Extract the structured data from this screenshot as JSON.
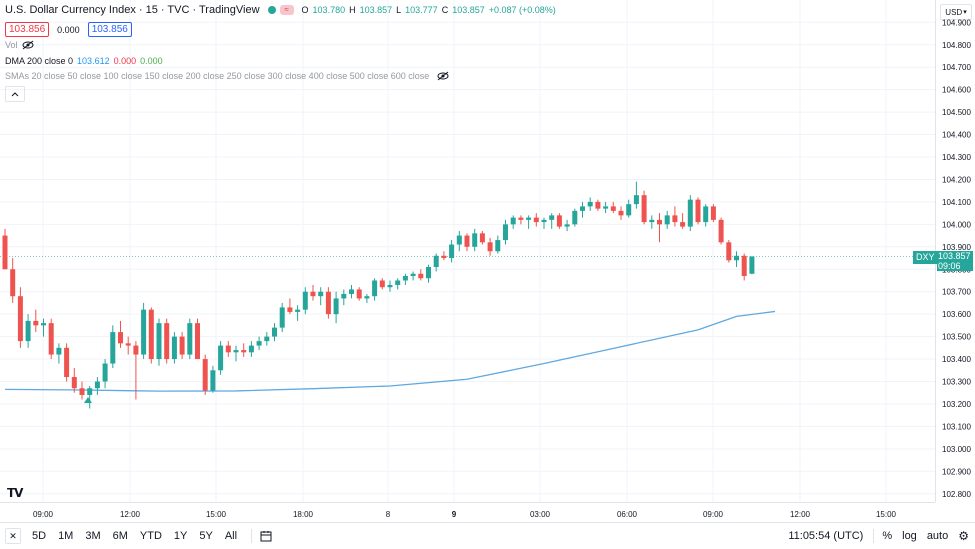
{
  "header": {
    "symbol_title": "U.S. Dollar Currency Index · 15 · TVC · TradingView",
    "ohlc": {
      "o_label": "O",
      "o": "103.780",
      "h_label": "H",
      "h": "103.857",
      "l_label": "L",
      "l": "103.777",
      "c_label": "C",
      "c": "103.857",
      "change": "+0.087 (+0.08%)"
    },
    "sell_price": "103.856",
    "spread": "0.000",
    "buy_price": "103.856"
  },
  "indicators": {
    "vol_label": "Vol",
    "dma_label": "DMA 200 close 0",
    "dma_values": [
      "103.612",
      "0.000",
      "0.000"
    ],
    "sma_label": "SMAs 20 close 50 close 100 close 150 close 200 close 250 close 300 close 400 close 500 close 600 close"
  },
  "currency": "USD",
  "price_axis": {
    "ticks": [
      "104.900",
      "104.800",
      "104.700",
      "104.600",
      "104.500",
      "104.400",
      "104.300",
      "104.200",
      "104.100",
      "104.000",
      "103.900",
      "103.800",
      "103.700",
      "103.600",
      "103.500",
      "103.400",
      "103.300",
      "103.200",
      "103.100",
      "103.000",
      "102.900",
      "102.800"
    ],
    "last_symbol": "DXY",
    "last_price": "103.857",
    "countdown": "09:06"
  },
  "time_axis": {
    "labels": [
      "09:00",
      "12:00",
      "15:00",
      "18:00",
      "8",
      "9",
      "03:00",
      "06:00",
      "09:00",
      "12:00",
      "15:00"
    ]
  },
  "bottom_bar": {
    "ranges": [
      "5D",
      "1M",
      "3M",
      "6M",
      "YTD",
      "1Y",
      "5Y",
      "All"
    ],
    "clock": "11:05:54 (UTC)",
    "percent_label": "%",
    "log_label": "log",
    "auto_label": "auto"
  },
  "colors": {
    "up": "#26a69a",
    "down": "#ef5350",
    "dma": "#5fa8e0",
    "accent": "#2962ff"
  },
  "chart_data": {
    "type": "candlestick",
    "title": "U.S. Dollar Currency Index",
    "ylim": [
      102.75,
      104.95
    ],
    "grid": true,
    "candles": [
      {
        "o": 103.95,
        "h": 103.98,
        "l": 103.8,
        "c": 103.8
      },
      {
        "o": 103.8,
        "h": 103.85,
        "l": 103.65,
        "c": 103.68
      },
      {
        "o": 103.68,
        "h": 103.72,
        "l": 103.45,
        "c": 103.48
      },
      {
        "o": 103.48,
        "h": 103.6,
        "l": 103.45,
        "c": 103.57
      },
      {
        "o": 103.57,
        "h": 103.62,
        "l": 103.52,
        "c": 103.55
      },
      {
        "o": 103.55,
        "h": 103.58,
        "l": 103.5,
        "c": 103.56
      },
      {
        "o": 103.56,
        "h": 103.58,
        "l": 103.4,
        "c": 103.42
      },
      {
        "o": 103.42,
        "h": 103.47,
        "l": 103.38,
        "c": 103.45
      },
      {
        "o": 103.45,
        "h": 103.47,
        "l": 103.3,
        "c": 103.32
      },
      {
        "o": 103.32,
        "h": 103.36,
        "l": 103.25,
        "c": 103.27
      },
      {
        "o": 103.27,
        "h": 103.3,
        "l": 103.22,
        "c": 103.24
      },
      {
        "o": 103.24,
        "h": 103.28,
        "l": 103.18,
        "c": 103.27
      },
      {
        "o": 103.27,
        "h": 103.32,
        "l": 103.24,
        "c": 103.3
      },
      {
        "o": 103.3,
        "h": 103.4,
        "l": 103.27,
        "c": 103.38
      },
      {
        "o": 103.38,
        "h": 103.55,
        "l": 103.36,
        "c": 103.52
      },
      {
        "o": 103.52,
        "h": 103.57,
        "l": 103.45,
        "c": 103.47
      },
      {
        "o": 103.47,
        "h": 103.5,
        "l": 103.42,
        "c": 103.46
      },
      {
        "o": 103.46,
        "h": 103.48,
        "l": 103.22,
        "c": 103.42
      },
      {
        "o": 103.42,
        "h": 103.65,
        "l": 103.4,
        "c": 103.62
      },
      {
        "o": 103.62,
        "h": 103.63,
        "l": 103.38,
        "c": 103.4
      },
      {
        "o": 103.4,
        "h": 103.58,
        "l": 103.37,
        "c": 103.56
      },
      {
        "o": 103.56,
        "h": 103.58,
        "l": 103.38,
        "c": 103.4
      },
      {
        "o": 103.4,
        "h": 103.52,
        "l": 103.38,
        "c": 103.5
      },
      {
        "o": 103.5,
        "h": 103.52,
        "l": 103.4,
        "c": 103.42
      },
      {
        "o": 103.42,
        "h": 103.58,
        "l": 103.4,
        "c": 103.56
      },
      {
        "o": 103.56,
        "h": 103.58,
        "l": 103.4,
        "c": 103.4
      },
      {
        "o": 103.4,
        "h": 103.42,
        "l": 103.24,
        "c": 103.26
      },
      {
        "o": 103.26,
        "h": 103.37,
        "l": 103.25,
        "c": 103.35
      },
      {
        "o": 103.35,
        "h": 103.48,
        "l": 103.33,
        "c": 103.46
      },
      {
        "o": 103.46,
        "h": 103.48,
        "l": 103.41,
        "c": 103.43
      },
      {
        "o": 103.43,
        "h": 103.46,
        "l": 103.39,
        "c": 103.44
      },
      {
        "o": 103.44,
        "h": 103.47,
        "l": 103.41,
        "c": 103.43
      },
      {
        "o": 103.43,
        "h": 103.48,
        "l": 103.41,
        "c": 103.46
      },
      {
        "o": 103.46,
        "h": 103.5,
        "l": 103.44,
        "c": 103.48
      },
      {
        "o": 103.48,
        "h": 103.52,
        "l": 103.46,
        "c": 103.5
      },
      {
        "o": 103.5,
        "h": 103.56,
        "l": 103.48,
        "c": 103.54
      },
      {
        "o": 103.54,
        "h": 103.65,
        "l": 103.52,
        "c": 103.63
      },
      {
        "o": 103.63,
        "h": 103.67,
        "l": 103.6,
        "c": 103.61
      },
      {
        "o": 103.61,
        "h": 103.64,
        "l": 103.57,
        "c": 103.62
      },
      {
        "o": 103.62,
        "h": 103.72,
        "l": 103.6,
        "c": 103.7
      },
      {
        "o": 103.7,
        "h": 103.73,
        "l": 103.66,
        "c": 103.68
      },
      {
        "o": 103.68,
        "h": 103.72,
        "l": 103.64,
        "c": 103.7
      },
      {
        "o": 103.7,
        "h": 103.72,
        "l": 103.58,
        "c": 103.6
      },
      {
        "o": 103.6,
        "h": 103.7,
        "l": 103.56,
        "c": 103.67
      },
      {
        "o": 103.67,
        "h": 103.71,
        "l": 103.64,
        "c": 103.69
      },
      {
        "o": 103.69,
        "h": 103.73,
        "l": 103.67,
        "c": 103.71
      },
      {
        "o": 103.71,
        "h": 103.72,
        "l": 103.66,
        "c": 103.67
      },
      {
        "o": 103.67,
        "h": 103.69,
        "l": 103.65,
        "c": 103.68
      },
      {
        "o": 103.68,
        "h": 103.76,
        "l": 103.66,
        "c": 103.75
      },
      {
        "o": 103.75,
        "h": 103.76,
        "l": 103.71,
        "c": 103.72
      },
      {
        "o": 103.72,
        "h": 103.75,
        "l": 103.7,
        "c": 103.73
      },
      {
        "o": 103.73,
        "h": 103.76,
        "l": 103.71,
        "c": 103.75
      },
      {
        "o": 103.75,
        "h": 103.78,
        "l": 103.73,
        "c": 103.77
      },
      {
        "o": 103.77,
        "h": 103.79,
        "l": 103.75,
        "c": 103.78
      },
      {
        "o": 103.78,
        "h": 103.8,
        "l": 103.75,
        "c": 103.76
      },
      {
        "o": 103.76,
        "h": 103.82,
        "l": 103.74,
        "c": 103.81
      },
      {
        "o": 103.81,
        "h": 103.87,
        "l": 103.79,
        "c": 103.86
      },
      {
        "o": 103.86,
        "h": 103.88,
        "l": 103.84,
        "c": 103.85
      },
      {
        "o": 103.85,
        "h": 103.93,
        "l": 103.83,
        "c": 103.91
      },
      {
        "o": 103.91,
        "h": 103.97,
        "l": 103.88,
        "c": 103.95
      },
      {
        "o": 103.95,
        "h": 103.96,
        "l": 103.88,
        "c": 103.9
      },
      {
        "o": 103.9,
        "h": 103.98,
        "l": 103.88,
        "c": 103.96
      },
      {
        "o": 103.96,
        "h": 103.97,
        "l": 103.91,
        "c": 103.92
      },
      {
        "o": 103.92,
        "h": 103.94,
        "l": 103.86,
        "c": 103.88
      },
      {
        "o": 103.88,
        "h": 103.95,
        "l": 103.87,
        "c": 103.93
      },
      {
        "o": 103.93,
        "h": 104.02,
        "l": 103.91,
        "c": 104.0
      },
      {
        "o": 104.0,
        "h": 104.04,
        "l": 103.98,
        "c": 104.03
      },
      {
        "o": 104.03,
        "h": 104.04,
        "l": 104.0,
        "c": 104.02
      },
      {
        "o": 104.02,
        "h": 104.04,
        "l": 103.98,
        "c": 104.03
      },
      {
        "o": 104.03,
        "h": 104.05,
        "l": 103.99,
        "c": 104.01
      },
      {
        "o": 104.01,
        "h": 104.03,
        "l": 103.98,
        "c": 104.02
      },
      {
        "o": 104.02,
        "h": 104.05,
        "l": 103.98,
        "c": 104.04
      },
      {
        "o": 104.04,
        "h": 104.05,
        "l": 103.98,
        "c": 103.99
      },
      {
        "o": 103.99,
        "h": 104.02,
        "l": 103.97,
        "c": 104.0
      },
      {
        "o": 104.0,
        "h": 104.07,
        "l": 103.99,
        "c": 104.06
      },
      {
        "o": 104.06,
        "h": 104.1,
        "l": 104.03,
        "c": 104.08
      },
      {
        "o": 104.08,
        "h": 104.12,
        "l": 104.06,
        "c": 104.1
      },
      {
        "o": 104.1,
        "h": 104.11,
        "l": 104.06,
        "c": 104.07
      },
      {
        "o": 104.07,
        "h": 104.1,
        "l": 104.05,
        "c": 104.08
      },
      {
        "o": 104.08,
        "h": 104.1,
        "l": 104.05,
        "c": 104.06
      },
      {
        "o": 104.06,
        "h": 104.08,
        "l": 104.02,
        "c": 104.04
      },
      {
        "o": 104.04,
        "h": 104.11,
        "l": 104.03,
        "c": 104.09
      },
      {
        "o": 104.09,
        "h": 104.19,
        "l": 104.07,
        "c": 104.13
      },
      {
        "o": 104.13,
        "h": 104.15,
        "l": 104.0,
        "c": 104.01
      },
      {
        "o": 104.01,
        "h": 104.04,
        "l": 103.98,
        "c": 104.02
      },
      {
        "o": 104.02,
        "h": 104.05,
        "l": 103.92,
        "c": 104.0
      },
      {
        "o": 104.0,
        "h": 104.06,
        "l": 103.98,
        "c": 104.04
      },
      {
        "o": 104.04,
        "h": 104.08,
        "l": 103.99,
        "c": 104.01
      },
      {
        "o": 104.01,
        "h": 104.05,
        "l": 103.98,
        "c": 103.99
      },
      {
        "o": 103.99,
        "h": 104.13,
        "l": 103.97,
        "c": 104.11
      },
      {
        "o": 104.11,
        "h": 104.12,
        "l": 104.0,
        "c": 104.01
      },
      {
        "o": 104.01,
        "h": 104.09,
        "l": 103.99,
        "c": 104.08
      },
      {
        "o": 104.08,
        "h": 104.09,
        "l": 104.01,
        "c": 104.02
      },
      {
        "o": 104.02,
        "h": 104.03,
        "l": 103.91,
        "c": 103.92
      },
      {
        "o": 103.92,
        "h": 103.93,
        "l": 103.83,
        "c": 103.84
      },
      {
        "o": 103.84,
        "h": 103.88,
        "l": 103.81,
        "c": 103.86
      },
      {
        "o": 103.86,
        "h": 103.87,
        "l": 103.75,
        "c": 103.77
      },
      {
        "o": 103.78,
        "h": 103.857,
        "l": 103.777,
        "c": 103.857
      }
    ],
    "dma_line": [
      {
        "i": 0,
        "v": 103.265
      },
      {
        "i": 10,
        "v": 103.262
      },
      {
        "i": 20,
        "v": 103.257
      },
      {
        "i": 30,
        "v": 103.258
      },
      {
        "i": 40,
        "v": 103.268
      },
      {
        "i": 50,
        "v": 103.28
      },
      {
        "i": 60,
        "v": 103.31
      },
      {
        "i": 70,
        "v": 103.38
      },
      {
        "i": 80,
        "v": 103.455
      },
      {
        "i": 90,
        "v": 103.53
      },
      {
        "i": 95,
        "v": 103.59
      },
      {
        "i": 100,
        "v": 103.612
      }
    ]
  }
}
